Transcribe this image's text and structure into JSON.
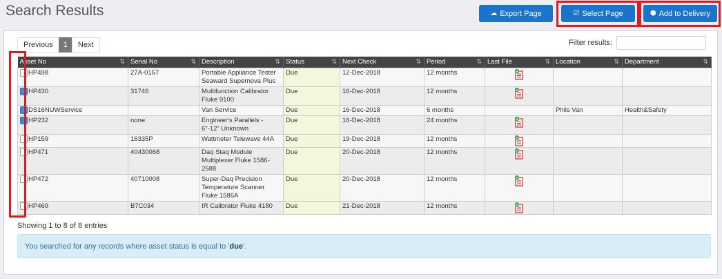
{
  "page": {
    "title": "Search Results"
  },
  "header_buttons": {
    "export": {
      "label": "Export Page",
      "icon": "cloud-download-icon"
    },
    "select": {
      "label": "Select Page",
      "icon": "check-square-icon"
    },
    "delivery": {
      "label": "Add to Delivery",
      "icon": "cube-icon"
    }
  },
  "pager": {
    "previous": "Previous",
    "current": "1",
    "next": "Next"
  },
  "filter": {
    "label": "Filter results:",
    "value": ""
  },
  "table": {
    "columns": [
      "Asset No",
      "Serial No",
      "Description",
      "Status",
      "Next Check",
      "Period",
      "Last File",
      "Location",
      "Department"
    ],
    "rows": [
      {
        "checked": false,
        "asset": "HP498",
        "serial": "27A-0157",
        "desc": "Portable Appliance Tester Seaward Supernova Plus",
        "status": "Due",
        "next": "12-Dec-2018",
        "period": "12 months",
        "file": true,
        "location": "",
        "dept": ""
      },
      {
        "checked": true,
        "asset": "HP430",
        "serial": "31746",
        "desc": "Multifunction Calibrator Fluke 9100",
        "status": "Due",
        "next": "16-Dec-2018",
        "period": "12 months",
        "file": true,
        "location": "",
        "dept": ""
      },
      {
        "checked": true,
        "asset": "DS16NUWService",
        "serial": "",
        "desc": "Van Service",
        "status": "Due",
        "next": "16-Dec-2018",
        "period": "6 months",
        "file": false,
        "location": "Phils Van",
        "dept": "Health&Safety"
      },
      {
        "checked": true,
        "asset": "HP232",
        "serial": "none",
        "desc": "Engineer's Parallels - 6\"-12\" Unknown",
        "status": "Due",
        "next": "16-Dec-2018",
        "period": "24 months",
        "file": true,
        "location": "",
        "dept": ""
      },
      {
        "checked": false,
        "asset": "HP159",
        "serial": "16335P",
        "desc": "Wattmeter Telewave 44A",
        "status": "Due",
        "next": "19-Dec-2018",
        "period": "12 months",
        "file": true,
        "location": "",
        "dept": ""
      },
      {
        "checked": false,
        "asset": "HP471",
        "serial": "40430068",
        "desc": "Daq Staq Module Multiplexer Fluke 1586-2588",
        "status": "Due",
        "next": "20-Dec-2018",
        "period": "12 months",
        "file": true,
        "location": "",
        "dept": ""
      },
      {
        "checked": false,
        "asset": "HP472",
        "serial": "40710008",
        "desc": "Super-Daq Precision Temperature Scanner Fluke 1586A",
        "status": "Due",
        "next": "20-Dec-2018",
        "period": "12 months",
        "file": true,
        "location": "",
        "dept": ""
      },
      {
        "checked": false,
        "asset": "HP469",
        "serial": "B7C034",
        "desc": "IR Calibrator Fluke 4180",
        "status": "Due",
        "next": "21-Dec-2018",
        "period": "12 months",
        "file": true,
        "location": "",
        "dept": ""
      }
    ]
  },
  "summary": "Showing 1 to 8 of 8 entries",
  "alert": {
    "prefix": "You searched for any records where asset status is equal to '",
    "term": "due",
    "suffix": "'."
  },
  "colors": {
    "primary": "#1a74c9",
    "highlight": "#e8171b",
    "status_bg": "#f3f8dd",
    "alert_bg": "#d9edf7"
  }
}
